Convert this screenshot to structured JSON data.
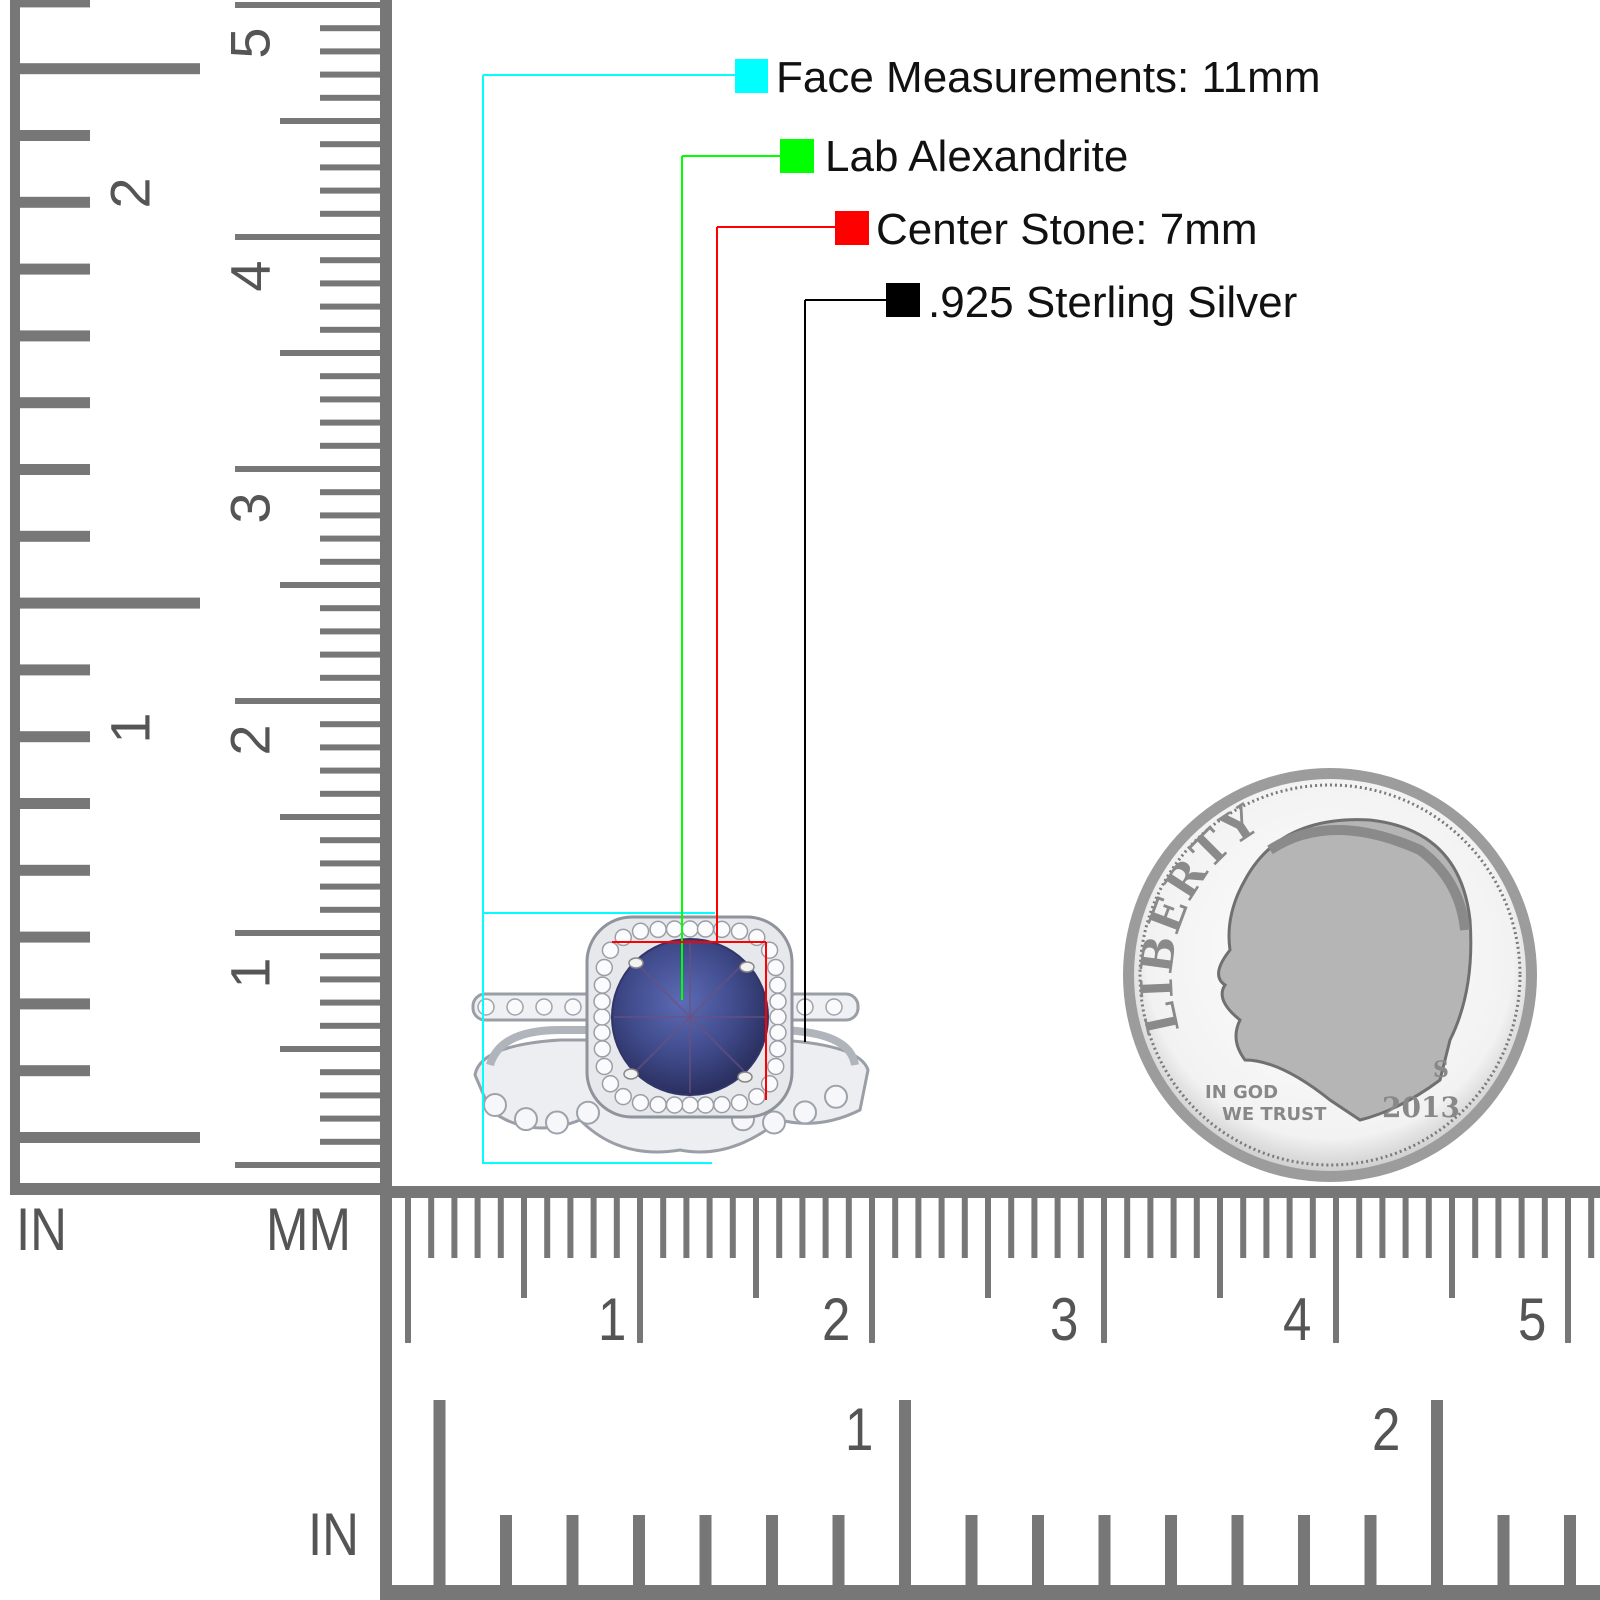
{
  "legend": {
    "items": [
      {
        "label": "Face Measurements: 11mm",
        "color": "#00ffff"
      },
      {
        "label": "Lab Alexandrite",
        "color": "#00ff00"
      },
      {
        "label": "Center Stone: 7mm",
        "color": "#ff0000"
      },
      {
        "label": ".925 Sterling Silver",
        "color": "#000000"
      }
    ]
  },
  "rulers": {
    "left_in_label": "IN",
    "left_mm_label": "MM",
    "bottom_in_label": "IN",
    "left_inch_numbers": [
      "1",
      "2"
    ],
    "left_cm_numbers": [
      "1",
      "2",
      "3",
      "4",
      "5"
    ],
    "bottom_cm_numbers": [
      "1",
      "2",
      "3",
      "4",
      "5"
    ],
    "bottom_inch_numbers": [
      "1",
      "2"
    ],
    "color": "#777777"
  },
  "coin": {
    "legend_text": "LIBERTY",
    "motto": "IN GOD WE TRUST",
    "year": "2013",
    "mint_mark": "S"
  },
  "stone_color": "#3f4a8a"
}
